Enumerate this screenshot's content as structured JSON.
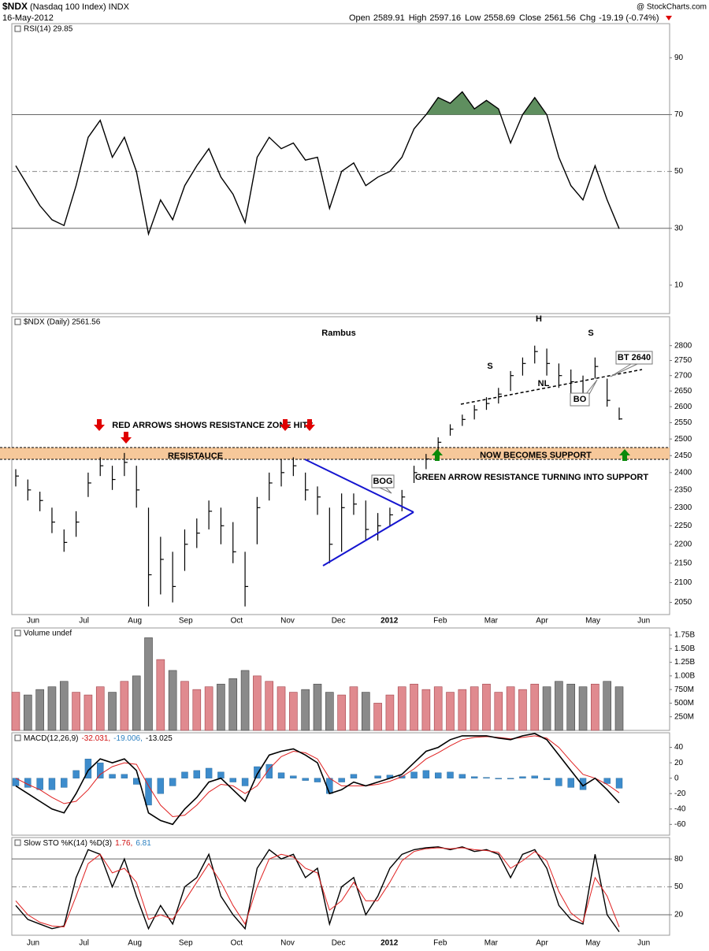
{
  "header": {
    "symbol": "$NDX",
    "name": "(Nasdaq 100 Index) INDX",
    "date": "16-May-2012",
    "open_label": "Open",
    "open": 2589.91,
    "high_label": "High",
    "low_label": "Low",
    "close_label": "Close",
    "chg_label": "Chg",
    "chg": -19.19,
    "chg_pct": "(-0.74%)",
    "credit": "@ StockCharts.com"
  },
  "months": [
    "Jun",
    "Jul",
    "Aug",
    "Sep",
    "Oct",
    "Nov",
    "Dec",
    "2012",
    "Feb",
    "Mar",
    "Apr",
    "May",
    "Jun"
  ],
  "chart_data": [
    {
      "type": "line",
      "legend": "RSI(14) 29.85",
      "ylim": [
        0,
        102
      ],
      "yticks": [
        90,
        70,
        50,
        30,
        10
      ],
      "hlines": [
        {
          "value": 70,
          "style": "solid"
        },
        {
          "value": 50,
          "style": "dashed"
        },
        {
          "value": 30,
          "style": "solid"
        }
      ],
      "fill_above": 70,
      "fill_color": "#5f8f5f",
      "series": [
        {
          "name": "RSI(14)",
          "color": "#000000",
          "values": [
            52,
            45,
            38,
            33,
            31,
            45,
            62,
            68,
            55,
            62,
            50,
            28,
            40,
            33,
            45,
            52,
            58,
            48,
            42,
            32,
            55,
            62,
            58,
            60,
            54,
            55,
            37,
            50,
            53,
            45,
            48,
            50,
            55,
            65,
            70,
            76,
            74,
            78,
            72,
            75,
            72,
            60,
            70,
            76,
            70,
            55,
            45,
            40,
            52,
            40,
            29.85
          ]
        }
      ]
    },
    {
      "type": "hlc",
      "legend": "$NDX (Daily) 2561.56",
      "log": true,
      "color": "#000000",
      "ylim": [
        2020,
        2900
      ],
      "yticks": [
        2050,
        2100,
        2150,
        2200,
        2250,
        2300,
        2350,
        2400,
        2450,
        2500,
        2550,
        2600,
        2650,
        2700,
        2750,
        2800
      ],
      "close": [
        2390,
        2350,
        2320,
        2260,
        2205,
        2260,
        2370,
        2420,
        2380,
        2430,
        2350,
        2120,
        2160,
        2090,
        2200,
        2230,
        2290,
        2250,
        2180,
        2090,
        2300,
        2370,
        2400,
        2420,
        2350,
        2330,
        2200,
        2300,
        2310,
        2240,
        2250,
        2280,
        2330,
        2400,
        2440,
        2490,
        2530,
        2560,
        2590,
        2610,
        2640,
        2700,
        2740,
        2780,
        2740,
        2700,
        2680,
        2640,
        2730,
        2620,
        2561.56
      ],
      "high": [
        2410,
        2380,
        2345,
        2300,
        2240,
        2290,
        2400,
        2445,
        2420,
        2458,
        2420,
        2300,
        2220,
        2180,
        2240,
        2270,
        2320,
        2300,
        2260,
        2180,
        2330,
        2400,
        2440,
        2445,
        2400,
        2360,
        2300,
        2340,
        2340,
        2320,
        2285,
        2300,
        2350,
        2420,
        2455,
        2505,
        2545,
        2575,
        2605,
        2630,
        2660,
        2715,
        2760,
        2800,
        2790,
        2740,
        2720,
        2700,
        2760,
        2690,
        2597.16
      ],
      "low": [
        2360,
        2320,
        2290,
        2230,
        2180,
        2220,
        2330,
        2390,
        2350,
        2390,
        2300,
        2040,
        2070,
        2050,
        2130,
        2190,
        2240,
        2200,
        2150,
        2040,
        2200,
        2320,
        2360,
        2390,
        2320,
        2280,
        2150,
        2180,
        2280,
        2210,
        2210,
        2250,
        2290,
        2370,
        2410,
        2460,
        2510,
        2540,
        2560,
        2590,
        2610,
        2650,
        2700,
        2740,
        2700,
        2660,
        2640,
        2610,
        2690,
        2600,
        2558.69
      ],
      "annotations": {
        "rambus": "Rambus",
        "red_note": "RED ARROWS SHOWS RESISTANCE ZONE HITS",
        "resistance": "RESISTAUCE",
        "support": "NOW BECOMES SUPPORT",
        "green_note": "GREEN ARROW RESISTANCE TURNING INTO SUPPORT",
        "bog": "BOG",
        "s1": "S",
        "h": "H",
        "s2": "S",
        "nl": "NL",
        "bt": "BT 2640",
        "bo": "BO"
      }
    },
    {
      "type": "bar",
      "legend": "Volume undef",
      "ylim": [
        0,
        1880
      ],
      "up_color": "#e08a8f",
      "down_color": "#8a8a8a",
      "yticks": [
        {
          "value": 250,
          "label": "250M"
        },
        {
          "value": 500,
          "label": "500M"
        },
        {
          "value": 750,
          "label": "750M"
        },
        {
          "value": 1000,
          "label": "1.00B"
        },
        {
          "value": 1250,
          "label": "1.25B"
        },
        {
          "value": 1500,
          "label": "1.50B"
        },
        {
          "value": 1750,
          "label": "1.75B"
        }
      ],
      "values": [
        700,
        650,
        750,
        800,
        900,
        700,
        650,
        800,
        700,
        900,
        1000,
        1700,
        1300,
        1100,
        900,
        750,
        800,
        850,
        950,
        1100,
        1000,
        900,
        800,
        700,
        750,
        850,
        700,
        650,
        800,
        700,
        500,
        650,
        800,
        850,
        750,
        800,
        700,
        750,
        800,
        850,
        700,
        800,
        750,
        850,
        800,
        900,
        850,
        800,
        850,
        900,
        800
      ]
    },
    {
      "type": "macd",
      "legend": [
        "MACD(12,26,9)",
        "-32.031,",
        "-19.006,",
        "-13.025"
      ],
      "ylim": [
        -74,
        59
      ],
      "yticks": [
        40,
        20,
        0,
        -20,
        -40,
        -60
      ],
      "series": [
        {
          "name": "MACD",
          "color": "#000000",
          "values": [
            -10,
            -20,
            -30,
            -40,
            -45,
            -20,
            10,
            25,
            20,
            25,
            10,
            -45,
            -55,
            -60,
            -40,
            -25,
            -5,
            0,
            -15,
            -30,
            5,
            30,
            35,
            38,
            30,
            20,
            -20,
            -15,
            -5,
            -10,
            -5,
            0,
            5,
            20,
            35,
            40,
            50,
            55,
            55,
            55,
            52,
            50,
            55,
            58,
            50,
            30,
            10,
            -10,
            0,
            -15,
            -32.031
          ]
        },
        {
          "name": "Signal",
          "color": "#e02020",
          "values": [
            0,
            -8,
            -15,
            -25,
            -33,
            -30,
            -15,
            5,
            15,
            20,
            18,
            -10,
            -35,
            -50,
            -48,
            -35,
            -18,
            -8,
            -10,
            -20,
            -10,
            12,
            28,
            35,
            33,
            25,
            0,
            -10,
            -10,
            -10,
            -8,
            -4,
            2,
            12,
            25,
            33,
            42,
            50,
            53,
            54,
            53,
            51,
            53,
            55,
            52,
            40,
            22,
            5,
            0,
            -8,
            -19.006
          ]
        },
        {
          "name": "Histogram",
          "color": "#3d8ccc",
          "values": [
            -10,
            -12,
            -15,
            -15,
            -12,
            10,
            25,
            20,
            5,
            5,
            -8,
            -35,
            -20,
            -10,
            8,
            10,
            13,
            8,
            -5,
            -10,
            15,
            18,
            7,
            3,
            -3,
            -5,
            -20,
            -5,
            5,
            0,
            3,
            4,
            3,
            8,
            10,
            7,
            8,
            5,
            2,
            1,
            -1,
            -1,
            2,
            3,
            -2,
            -10,
            -12,
            -15,
            0,
            -7,
            -13.025
          ]
        }
      ]
    },
    {
      "type": "line",
      "legend": [
        "Slow STO %K(14) %D(3)",
        "1.76,",
        "6.81"
      ],
      "ylim": [
        -2,
        103
      ],
      "yticks": [
        80,
        50,
        20
      ],
      "hlines": [
        {
          "value": 80,
          "style": "solid"
        },
        {
          "value": 50,
          "style": "dashed"
        },
        {
          "value": 20,
          "style": "solid"
        }
      ],
      "series": [
        {
          "name": "%K",
          "color": "#000000",
          "values": [
            30,
            15,
            10,
            5,
            8,
            60,
            90,
            85,
            50,
            80,
            40,
            5,
            30,
            10,
            50,
            60,
            85,
            40,
            20,
            5,
            70,
            90,
            80,
            85,
            60,
            70,
            10,
            50,
            60,
            20,
            40,
            70,
            85,
            90,
            92,
            93,
            90,
            93,
            88,
            90,
            85,
            60,
            85,
            90,
            70,
            30,
            15,
            10,
            85,
            20,
            1.76
          ]
        },
        {
          "name": "%D",
          "color": "#e02020",
          "values": [
            35,
            20,
            12,
            8,
            7,
            40,
            75,
            85,
            65,
            70,
            55,
            15,
            20,
            15,
            35,
            55,
            75,
            55,
            30,
            10,
            50,
            80,
            85,
            82,
            70,
            65,
            25,
            35,
            55,
            35,
            35,
            55,
            78,
            88,
            91,
            92,
            91,
            92,
            90,
            89,
            87,
            70,
            78,
            88,
            78,
            45,
            22,
            12,
            60,
            40,
            6.81
          ]
        }
      ]
    }
  ]
}
